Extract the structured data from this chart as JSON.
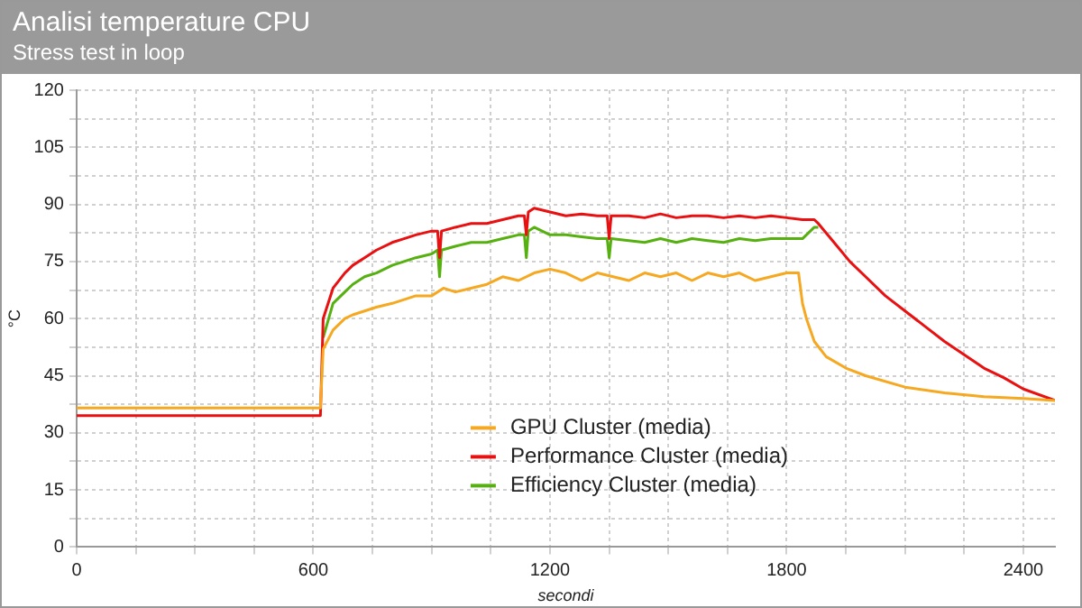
{
  "chart_data": {
    "type": "line",
    "title": "Analisi temperature CPU",
    "subtitle": "Stress test in loop",
    "xlabel": "secondi",
    "ylabel": "°C",
    "xlim": [
      0,
      2480
    ],
    "ylim": [
      0,
      120
    ],
    "xticks": [
      0,
      {
        "value": 150,
        "label": null
      },
      {
        "value": 300,
        "label": null
      },
      {
        "value": 450,
        "label": null
      },
      600,
      {
        "value": 750,
        "label": null
      },
      {
        "value": 900,
        "label": null
      },
      {
        "value": 1050,
        "label": null
      },
      1200,
      {
        "value": 1350,
        "label": null
      },
      {
        "value": 1500,
        "label": null
      },
      {
        "value": 1650,
        "label": null
      },
      1800,
      {
        "value": 1950,
        "label": null
      },
      {
        "value": 2100,
        "label": null
      },
      {
        "value": 2250,
        "label": null
      },
      2400
    ],
    "yticks": [
      0,
      {
        "value": 7.5,
        "label": null
      },
      15,
      {
        "value": 22.5,
        "label": null
      },
      30,
      {
        "value": 37.5,
        "label": null
      },
      45,
      {
        "value": 52.5,
        "label": null
      },
      60,
      {
        "value": 67.5,
        "label": null
      },
      75,
      {
        "value": 82.5,
        "label": null
      },
      90,
      {
        "value": 97.5,
        "label": null
      },
      105,
      {
        "value": 112.5,
        "label": null
      },
      120
    ],
    "grid": true,
    "legend": "bottom right",
    "marker": "none",
    "line_style": "solid",
    "series": [
      {
        "name": "GPU Cluster (media)",
        "color": "#f5a820",
        "x": [
          0,
          100,
          200,
          300,
          400,
          500,
          600,
          618,
          625,
          650,
          680,
          700,
          730,
          760,
          800,
          830,
          860,
          900,
          930,
          960,
          1000,
          1040,
          1080,
          1120,
          1160,
          1200,
          1240,
          1280,
          1320,
          1360,
          1400,
          1440,
          1480,
          1520,
          1560,
          1600,
          1640,
          1680,
          1720,
          1760,
          1800,
          1830,
          1840,
          1850,
          1870,
          1900,
          1950,
          2000,
          2100,
          2200,
          2300,
          2400,
          2480
        ],
        "values": [
          36.5,
          36.5,
          36.5,
          36.5,
          36.5,
          36.5,
          36.5,
          36.5,
          52,
          57,
          60,
          61,
          62,
          63,
          64,
          65,
          66,
          66,
          68,
          67,
          68,
          69,
          71,
          70,
          72,
          73,
          72,
          70,
          72,
          71,
          70,
          72,
          71,
          72,
          70,
          72,
          71,
          72,
          70,
          71,
          72,
          72,
          64,
          60,
          54,
          50,
          47,
          45,
          42,
          40.5,
          39.5,
          39,
          38.5
        ]
      },
      {
        "name": "Performance Cluster (media)",
        "color": "#e81010",
        "x": [
          0,
          100,
          200,
          300,
          400,
          500,
          600,
          618,
          625,
          650,
          680,
          700,
          730,
          760,
          800,
          830,
          860,
          900,
          915,
          920,
          925,
          960,
          1000,
          1040,
          1080,
          1120,
          1135,
          1140,
          1145,
          1160,
          1200,
          1240,
          1280,
          1320,
          1345,
          1350,
          1355,
          1400,
          1440,
          1480,
          1520,
          1560,
          1600,
          1640,
          1680,
          1720,
          1760,
          1800,
          1840,
          1870,
          1880,
          1920,
          1960,
          2000,
          2050,
          2100,
          2150,
          2200,
          2250,
          2300,
          2350,
          2400,
          2480
        ],
        "values": [
          34.5,
          34.5,
          34.5,
          34.5,
          34.5,
          34.5,
          34.5,
          34.5,
          60,
          68,
          72,
          74,
          76,
          78,
          80,
          81,
          82,
          83,
          83,
          76,
          83,
          84,
          85,
          85,
          86,
          87,
          87,
          82,
          88,
          89,
          88,
          87,
          87.5,
          87,
          87,
          81,
          87,
          87,
          86.5,
          87.5,
          86.5,
          87,
          87,
          86.5,
          87,
          86.5,
          87,
          86.5,
          86,
          86,
          85,
          80,
          75,
          71,
          66,
          62,
          58,
          54,
          50.5,
          47,
          44.5,
          41.5,
          38.5
        ]
      },
      {
        "name": "Efficiency Cluster (media)",
        "color": "#56b010",
        "x": [
          625,
          650,
          680,
          700,
          730,
          760,
          800,
          830,
          860,
          900,
          915,
          920,
          925,
          960,
          1000,
          1040,
          1080,
          1120,
          1135,
          1140,
          1145,
          1160,
          1200,
          1240,
          1280,
          1320,
          1345,
          1350,
          1355,
          1400,
          1440,
          1480,
          1520,
          1560,
          1600,
          1640,
          1680,
          1720,
          1760,
          1800,
          1840,
          1870,
          1880
        ],
        "values": [
          55,
          64,
          67,
          69,
          71,
          72,
          74,
          75,
          76,
          77,
          78,
          71,
          78,
          79,
          80,
          80,
          81,
          82,
          82,
          76,
          83,
          84,
          82,
          82,
          81.5,
          81,
          81,
          76,
          81,
          80.5,
          80,
          81,
          80,
          81,
          80.5,
          80,
          81,
          80.5,
          81,
          81,
          81,
          84,
          84
        ]
      }
    ]
  }
}
